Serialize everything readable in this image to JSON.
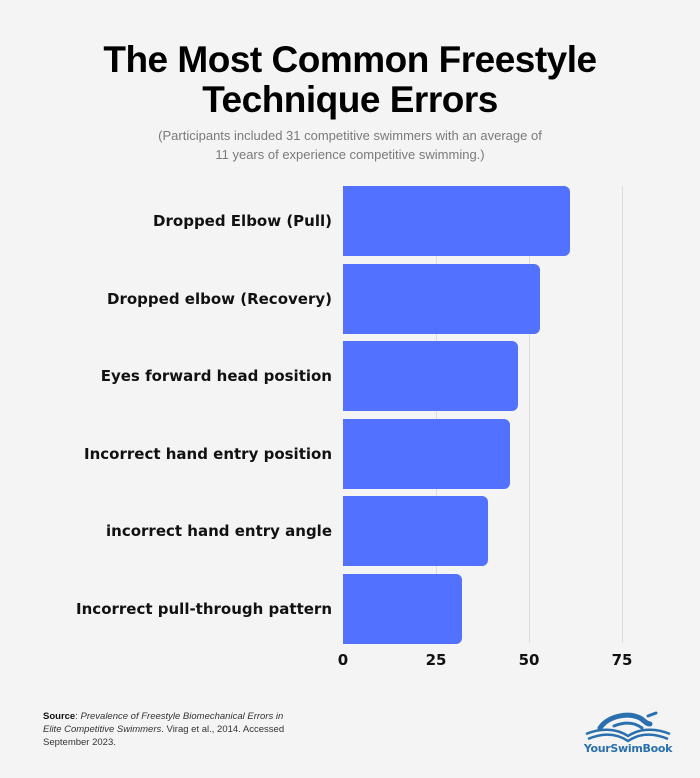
{
  "header": {
    "title_line1": "The Most Common Freestyle",
    "title_line2": "Technique Errors",
    "subtitle_line1": "(Participants included 31 competitive swimmers with an average of",
    "subtitle_line2": "11 years of experience competitive swimming.)"
  },
  "chart_data": {
    "type": "bar",
    "orientation": "horizontal",
    "title": "The Most Common Freestyle Technique Errors",
    "subtitle": "(Participants included 31 competitive swimmers with an average of 11 years of experience competitive swimming.)",
    "categories": [
      "Dropped Elbow (Pull)",
      "Dropped elbow (Recovery)",
      "Eyes forward head position",
      "Incorrect hand entry position",
      "incorrect hand entry angle",
      "Incorrect pull-through pattern"
    ],
    "values": [
      61,
      53,
      47,
      45,
      39,
      32
    ],
    "xlabel": "",
    "ylabel": "",
    "xlim": [
      0,
      75
    ],
    "xticks": [
      "0",
      "25",
      "50",
      "75"
    ],
    "grid": true,
    "legend": null,
    "bar_color": "#5271ff"
  },
  "footer": {
    "source_label": "Source",
    "source_sep": ": ",
    "source_title": "Prevalence of Freestyle Biomechanical Errors in Elite Competitive Swimmers",
    "source_rest": ". Virag et al., 2014. Accessed September 2023.",
    "logo_text": "YourSwimBook",
    "logo_icon": "swimmer-book-icon"
  },
  "colors": {
    "background": "#f4f4f4",
    "bar": "#5271ff",
    "gridline": "#dcdcdc",
    "logo": "#2a6fae"
  }
}
